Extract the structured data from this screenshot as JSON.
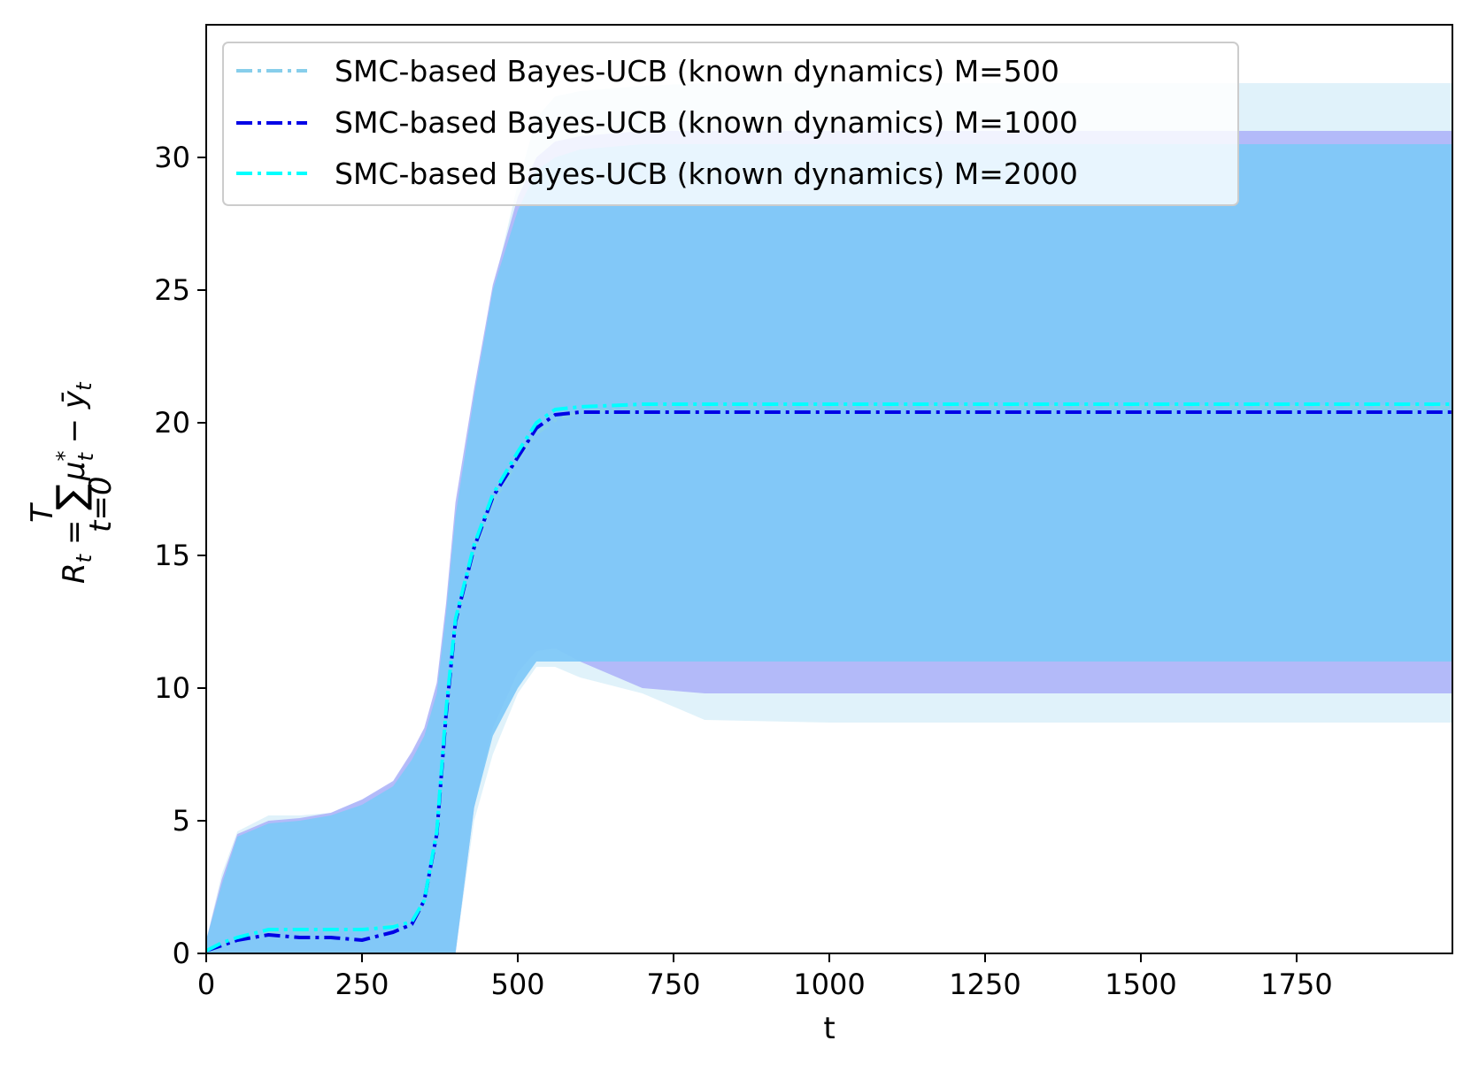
{
  "chart_data": {
    "type": "line",
    "title": "",
    "xlabel": "t",
    "ylabel": "R_t = Σ_{t=0}^{T} μ*_t − ȳ_t",
    "ylabel_parts": {
      "lhs": "R",
      "lhs_sub": "t",
      "eq": " = ",
      "sum": "∑",
      "sum_top": "T",
      "sum_bottom": "t=0",
      "mu": "μ",
      "mu_sub": "t",
      "mu_sup": "*",
      "minus": " − ",
      "y": "ȳ",
      "y_sub": "t"
    },
    "xlim": [
      0,
      2000
    ],
    "ylim": [
      0,
      35
    ],
    "xticks": [
      0,
      250,
      500,
      750,
      1000,
      1250,
      1500,
      1750
    ],
    "xtick_labels": [
      "0",
      "250",
      "500",
      "750",
      "1000",
      "1250",
      "1500",
      "1750"
    ],
    "yticks": [
      0,
      5,
      10,
      15,
      20,
      25,
      30
    ],
    "ytick_labels": [
      "0",
      "5",
      "10",
      "15",
      "20",
      "25",
      "30"
    ],
    "grid": false,
    "legend_position": "top-left",
    "series": [
      {
        "name": "SMC-based Bayes-UCB (known dynamics) M=500",
        "color": "#87ceeb",
        "band_color": "#d6eef8",
        "x": [
          0,
          25,
          50,
          100,
          150,
          200,
          250,
          300,
          330,
          350,
          370,
          385,
          400,
          430,
          460,
          500,
          530,
          560,
          600,
          700,
          800,
          1000,
          1500,
          2000
        ],
        "mean": [
          0.1,
          0.4,
          0.6,
          0.8,
          0.8,
          0.8,
          0.9,
          1.1,
          1.2,
          1.9,
          4.5,
          9.0,
          12.5,
          15.2,
          17.0,
          18.6,
          19.6,
          20.1,
          20.4,
          20.6,
          20.6,
          20.6,
          20.6,
          20.6
        ],
        "lower": [
          0,
          0,
          0,
          0,
          0,
          0,
          0,
          0,
          0,
          0,
          0,
          0,
          0,
          5.0,
          7.5,
          9.8,
          10.8,
          10.8,
          10.4,
          9.8,
          8.8,
          8.7,
          8.7,
          8.7
        ],
        "upper": [
          0.5,
          3.0,
          4.6,
          5.2,
          5.2,
          5.3,
          5.8,
          6.4,
          7.5,
          8.2,
          10.0,
          13.0,
          16.5,
          21.0,
          25.0,
          29.0,
          31.5,
          32.3,
          32.5,
          32.7,
          32.8,
          32.8,
          32.8,
          32.8
        ]
      },
      {
        "name": "SMC-based Bayes-UCB (known dynamics) M=1000",
        "color": "#0000e6",
        "band_color": "#aab0f8",
        "x": [
          0,
          25,
          50,
          100,
          150,
          200,
          250,
          300,
          330,
          350,
          370,
          385,
          400,
          430,
          460,
          500,
          530,
          560,
          600,
          700,
          800,
          1000,
          1500,
          2000
        ],
        "mean": [
          0.1,
          0.3,
          0.5,
          0.7,
          0.6,
          0.6,
          0.5,
          0.8,
          1.1,
          2.0,
          4.5,
          9.0,
          12.5,
          15.3,
          17.2,
          18.7,
          19.8,
          20.3,
          20.4,
          20.4,
          20.4,
          20.4,
          20.4,
          20.4
        ],
        "lower": [
          0,
          0,
          0,
          0,
          0,
          0,
          0,
          0,
          0,
          0,
          0,
          0,
          0,
          5.5,
          8.5,
          10.6,
          11.4,
          11.5,
          11.0,
          10.0,
          9.8,
          9.8,
          9.8,
          9.8
        ],
        "upper": [
          0.5,
          2.8,
          4.5,
          5.0,
          5.1,
          5.3,
          5.8,
          6.5,
          7.6,
          8.5,
          10.2,
          13.2,
          17.0,
          21.3,
          25.2,
          28.5,
          30.0,
          30.6,
          30.8,
          31.0,
          31.0,
          31.0,
          31.0,
          31.0
        ]
      },
      {
        "name": "SMC-based Bayes-UCB (known dynamics) M=2000",
        "color": "#00ffff",
        "band_color": "#80c8f8",
        "x": [
          0,
          25,
          50,
          100,
          150,
          200,
          250,
          300,
          330,
          350,
          370,
          385,
          400,
          430,
          460,
          500,
          530,
          560,
          600,
          700,
          800,
          1000,
          1500,
          2000
        ],
        "mean": [
          0.1,
          0.4,
          0.6,
          0.9,
          0.9,
          0.9,
          0.9,
          1.0,
          1.2,
          2.0,
          4.6,
          9.2,
          12.6,
          15.4,
          17.3,
          18.9,
          20.0,
          20.5,
          20.6,
          20.7,
          20.7,
          20.7,
          20.7,
          20.7
        ],
        "lower": [
          0,
          0,
          0,
          0,
          0,
          0,
          0,
          0,
          0,
          0,
          0,
          0,
          0,
          5.5,
          8.2,
          10.0,
          11.0,
          11.0,
          11.0,
          11.0,
          11.0,
          11.0,
          11.0,
          11.0
        ],
        "upper": [
          0.5,
          2.6,
          4.4,
          4.9,
          5.0,
          5.2,
          5.6,
          6.3,
          7.3,
          8.2,
          9.8,
          12.8,
          16.5,
          21.0,
          25.0,
          28.0,
          29.5,
          30.0,
          30.3,
          30.5,
          30.5,
          30.5,
          30.5,
          30.5
        ]
      }
    ]
  }
}
